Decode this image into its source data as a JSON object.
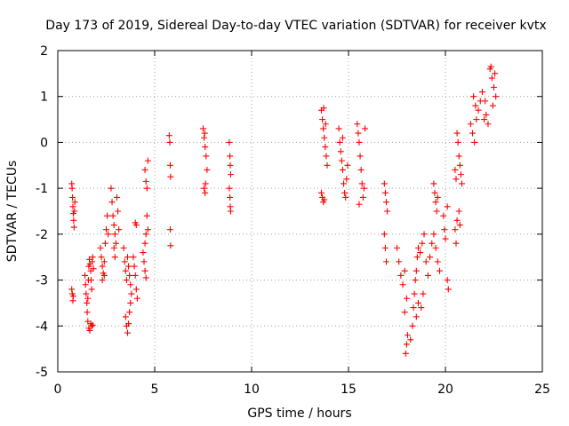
{
  "chart_data": {
    "type": "scatter",
    "title": "Day 173 of 2019, Sidereal Day-to-day VTEC variation (SDTVAR) for receiver kvtx",
    "xlabel": "GPS time / hours",
    "ylabel": "SDTVAR / TECUs",
    "xlim": [
      0,
      25
    ],
    "ylim": [
      -5,
      2
    ],
    "xticks": [
      0,
      5,
      10,
      15,
      20,
      25
    ],
    "yticks": [
      -5,
      -4,
      -3,
      -2,
      -1,
      0,
      1,
      2
    ],
    "xtick_labels": [
      "0",
      "5",
      "10",
      "15",
      "20",
      "25"
    ],
    "ytick_labels": [
      "-5",
      "-4",
      "-3",
      "-2",
      "-1",
      "0",
      "1",
      "2"
    ],
    "grid": true,
    "marker": "+",
    "color": "#ff0000",
    "series": [
      {
        "name": "SDTVAR",
        "points": [
          [
            0.72,
            -3.2
          ],
          [
            0.75,
            -3.3
          ],
          [
            0.78,
            -3.45
          ],
          [
            0.8,
            -3.35
          ],
          [
            0.72,
            -0.9
          ],
          [
            0.74,
            -1.0
          ],
          [
            0.76,
            -1.2
          ],
          [
            0.78,
            -1.4
          ],
          [
            0.8,
            -1.55
          ],
          [
            0.82,
            -1.7
          ],
          [
            0.84,
            -1.85
          ],
          [
            0.86,
            -1.5
          ],
          [
            0.88,
            -1.3
          ],
          [
            1.4,
            -2.9
          ],
          [
            1.43,
            -3.1
          ],
          [
            1.46,
            -3.3
          ],
          [
            1.5,
            -3.5
          ],
          [
            1.52,
            -3.7
          ],
          [
            1.55,
            -3.4
          ],
          [
            1.58,
            -3.0
          ],
          [
            1.6,
            -2.7
          ],
          [
            1.63,
            -2.55
          ],
          [
            1.66,
            -2.65
          ],
          [
            1.7,
            -2.8
          ],
          [
            1.72,
            -3.0
          ],
          [
            1.75,
            -3.2
          ],
          [
            1.78,
            -2.6
          ],
          [
            1.8,
            -2.5
          ],
          [
            1.84,
            -2.75
          ],
          [
            1.55,
            -3.9
          ],
          [
            1.6,
            -4.05
          ],
          [
            1.65,
            -4.1
          ],
          [
            1.7,
            -3.95
          ],
          [
            1.75,
            -4.0
          ],
          [
            1.8,
            -3.98
          ],
          [
            2.2,
            -2.3
          ],
          [
            2.25,
            -2.5
          ],
          [
            2.3,
            -2.7
          ],
          [
            2.35,
            -2.85
          ],
          [
            2.4,
            -2.6
          ],
          [
            2.45,
            -2.2
          ],
          [
            2.5,
            -1.9
          ],
          [
            2.55,
            -1.6
          ],
          [
            2.6,
            -2.0
          ],
          [
            2.3,
            -3.0
          ],
          [
            2.4,
            -2.9
          ],
          [
            2.75,
            -1.0
          ],
          [
            2.8,
            -1.3
          ],
          [
            2.85,
            -1.6
          ],
          [
            2.9,
            -1.8
          ],
          [
            2.95,
            -2.0
          ],
          [
            3.0,
            -2.2
          ],
          [
            3.05,
            -1.2
          ],
          [
            3.1,
            -1.5
          ],
          [
            3.15,
            -1.9
          ],
          [
            2.9,
            -2.3
          ],
          [
            2.95,
            -2.5
          ],
          [
            3.4,
            -2.3
          ],
          [
            3.45,
            -2.6
          ],
          [
            3.5,
            -2.8
          ],
          [
            3.55,
            -3.0
          ],
          [
            3.6,
            -2.5
          ],
          [
            3.65,
            -2.7
          ],
          [
            3.7,
            -2.9
          ],
          [
            3.75,
            -3.1
          ],
          [
            3.5,
            -3.8
          ],
          [
            3.55,
            -4.0
          ],
          [
            3.6,
            -4.15
          ],
          [
            3.65,
            -3.95
          ],
          [
            3.7,
            -3.7
          ],
          [
            3.75,
            -3.5
          ],
          [
            3.8,
            -3.3
          ],
          [
            3.9,
            -2.5
          ],
          [
            3.95,
            -2.7
          ],
          [
            4.0,
            -2.9
          ],
          [
            4.05,
            -3.2
          ],
          [
            4.1,
            -3.4
          ],
          [
            4.0,
            -1.75
          ],
          [
            4.05,
            -1.8
          ],
          [
            4.4,
            -2.4
          ],
          [
            4.45,
            -2.6
          ],
          [
            4.5,
            -2.2
          ],
          [
            4.55,
            -2.0
          ],
          [
            4.6,
            -1.6
          ],
          [
            4.65,
            -1.9
          ],
          [
            4.5,
            -2.8
          ],
          [
            4.55,
            -2.95
          ],
          [
            4.5,
            -0.6
          ],
          [
            4.55,
            -0.85
          ],
          [
            4.6,
            -1.0
          ],
          [
            4.65,
            -0.4
          ],
          [
            5.75,
            0.15
          ],
          [
            5.78,
            0.0
          ],
          [
            5.8,
            -0.5
          ],
          [
            5.82,
            -0.75
          ],
          [
            5.8,
            -1.9
          ],
          [
            5.82,
            -2.25
          ],
          [
            7.5,
            0.3
          ],
          [
            7.55,
            0.1
          ],
          [
            7.6,
            -0.1
          ],
          [
            7.65,
            -0.3
          ],
          [
            7.7,
            -0.6
          ],
          [
            7.58,
            0.2
          ],
          [
            7.55,
            -1.0
          ],
          [
            7.6,
            -1.1
          ],
          [
            7.62,
            -0.9
          ],
          [
            8.85,
            0.0
          ],
          [
            8.88,
            -0.3
          ],
          [
            8.9,
            -0.5
          ],
          [
            8.92,
            -0.7
          ],
          [
            8.85,
            -1.0
          ],
          [
            8.88,
            -1.2
          ],
          [
            8.9,
            -1.4
          ],
          [
            8.92,
            -1.5
          ],
          [
            13.6,
            0.7
          ],
          [
            13.65,
            0.5
          ],
          [
            13.7,
            0.3
          ],
          [
            13.75,
            0.1
          ],
          [
            13.8,
            -0.1
          ],
          [
            13.85,
            -0.3
          ],
          [
            13.9,
            -0.5
          ],
          [
            13.72,
            0.75
          ],
          [
            13.82,
            0.4
          ],
          [
            13.6,
            -1.1
          ],
          [
            13.65,
            -1.2
          ],
          [
            13.7,
            -1.3
          ],
          [
            13.75,
            -1.25
          ],
          [
            14.5,
            0.3
          ],
          [
            14.55,
            0.0
          ],
          [
            14.6,
            -0.2
          ],
          [
            14.65,
            -0.4
          ],
          [
            14.7,
            -0.6
          ],
          [
            14.75,
            -0.9
          ],
          [
            14.8,
            -1.1
          ],
          [
            14.85,
            -1.2
          ],
          [
            14.9,
            -0.8
          ],
          [
            14.95,
            -0.5
          ],
          [
            14.7,
            0.1
          ],
          [
            15.45,
            0.4
          ],
          [
            15.5,
            0.2
          ],
          [
            15.55,
            0.0
          ],
          [
            15.6,
            -0.3
          ],
          [
            15.65,
            -0.6
          ],
          [
            15.7,
            -0.9
          ],
          [
            15.75,
            -1.2
          ],
          [
            15.8,
            -1.0
          ],
          [
            15.85,
            0.3
          ],
          [
            15.55,
            -1.35
          ],
          [
            16.85,
            -0.9
          ],
          [
            16.9,
            -1.1
          ],
          [
            16.95,
            -1.3
          ],
          [
            17.0,
            -1.5
          ],
          [
            16.85,
            -2.0
          ],
          [
            16.9,
            -2.3
          ],
          [
            16.95,
            -2.6
          ],
          [
            17.5,
            -2.3
          ],
          [
            17.6,
            -2.6
          ],
          [
            17.7,
            -2.9
          ],
          [
            17.8,
            -3.1
          ],
          [
            17.9,
            -2.8
          ],
          [
            17.95,
            -4.6
          ],
          [
            18.0,
            -4.4
          ],
          [
            18.05,
            -4.2
          ],
          [
            17.9,
            -3.7
          ],
          [
            18.0,
            -3.4
          ],
          [
            18.2,
            -4.3
          ],
          [
            18.3,
            -4.0
          ],
          [
            18.35,
            -3.6
          ],
          [
            18.4,
            -3.3
          ],
          [
            18.45,
            -3.0
          ],
          [
            18.5,
            -2.8
          ],
          [
            18.55,
            -2.5
          ],
          [
            18.6,
            -2.3
          ],
          [
            18.5,
            -3.8
          ],
          [
            18.6,
            -3.5
          ],
          [
            18.7,
            -2.4
          ],
          [
            18.8,
            -2.2
          ],
          [
            18.9,
            -2.0
          ],
          [
            19.0,
            -2.6
          ],
          [
            19.1,
            -2.9
          ],
          [
            18.75,
            -3.6
          ],
          [
            18.85,
            -3.3
          ],
          [
            19.2,
            -2.5
          ],
          [
            19.3,
            -2.2
          ],
          [
            19.4,
            -0.9
          ],
          [
            19.45,
            -1.1
          ],
          [
            19.5,
            -1.3
          ],
          [
            19.55,
            -1.5
          ],
          [
            19.6,
            -1.2
          ],
          [
            19.4,
            -2.0
          ],
          [
            19.5,
            -2.3
          ],
          [
            19.6,
            -2.6
          ],
          [
            19.7,
            -2.8
          ],
          [
            19.9,
            -1.6
          ],
          [
            19.95,
            -1.9
          ],
          [
            20.0,
            -2.1
          ],
          [
            20.1,
            -3.0
          ],
          [
            20.15,
            -3.2
          ],
          [
            20.1,
            -1.4
          ],
          [
            20.5,
            -1.9
          ],
          [
            20.55,
            -2.2
          ],
          [
            20.6,
            -1.7
          ],
          [
            20.7,
            -1.5
          ],
          [
            20.75,
            -1.8
          ],
          [
            20.6,
            0.2
          ],
          [
            20.65,
            0.0
          ],
          [
            20.7,
            -0.3
          ],
          [
            20.75,
            -0.5
          ],
          [
            20.8,
            -0.7
          ],
          [
            20.85,
            -0.9
          ],
          [
            20.5,
            -0.6
          ],
          [
            20.55,
            -0.8
          ],
          [
            21.3,
            0.4
          ],
          [
            21.4,
            0.2
          ],
          [
            21.5,
            0.0
          ],
          [
            21.6,
            0.5
          ],
          [
            21.7,
            0.7
          ],
          [
            21.45,
            1.0
          ],
          [
            21.55,
            0.8
          ],
          [
            21.8,
            0.9
          ],
          [
            21.9,
            1.1
          ],
          [
            22.0,
            0.5
          ],
          [
            22.1,
            0.6
          ],
          [
            22.2,
            0.4
          ],
          [
            22.05,
            0.9
          ],
          [
            22.3,
            1.6
          ],
          [
            22.4,
            1.4
          ],
          [
            22.5,
            1.2
          ],
          [
            22.6,
            1.0
          ],
          [
            22.45,
            0.8
          ],
          [
            22.55,
            1.5
          ],
          [
            22.35,
            1.65
          ]
        ]
      }
    ]
  }
}
